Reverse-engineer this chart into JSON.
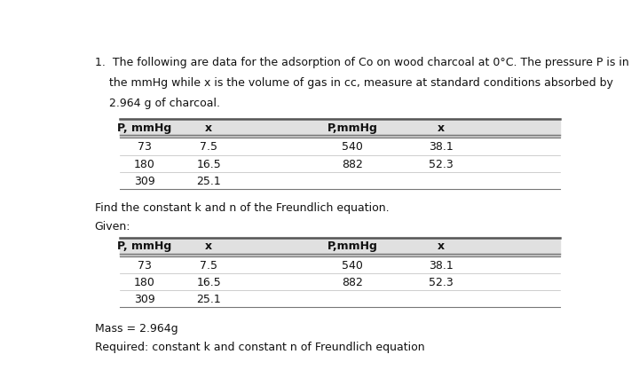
{
  "background_color": "#ffffff",
  "table1_headers": [
    "P, mmHg",
    "x",
    "P,mmHg",
    "x"
  ],
  "table1_rows": [
    [
      "73",
      "7.5",
      "540",
      "38.1"
    ],
    [
      "180",
      "16.5",
      "882",
      "52.3"
    ],
    [
      "309",
      "25.1",
      "",
      ""
    ]
  ],
  "find_text": "Find the constant k and n of the Freundlich equation.",
  "given_text": "Given:",
  "table2_headers": [
    "P, mmHg",
    "x",
    "P,mmHg",
    "x"
  ],
  "table2_rows": [
    [
      "73",
      "7.5",
      "540",
      "38.1"
    ],
    [
      "180",
      "16.5",
      "882",
      "52.3"
    ],
    [
      "309",
      "25.1",
      "",
      ""
    ]
  ],
  "mass_text": "Mass = 2.964g",
  "required_text": "Required: constant k and constant n of Freundlich equation",
  "font_size_body": 9.0,
  "font_size_table": 9.0
}
